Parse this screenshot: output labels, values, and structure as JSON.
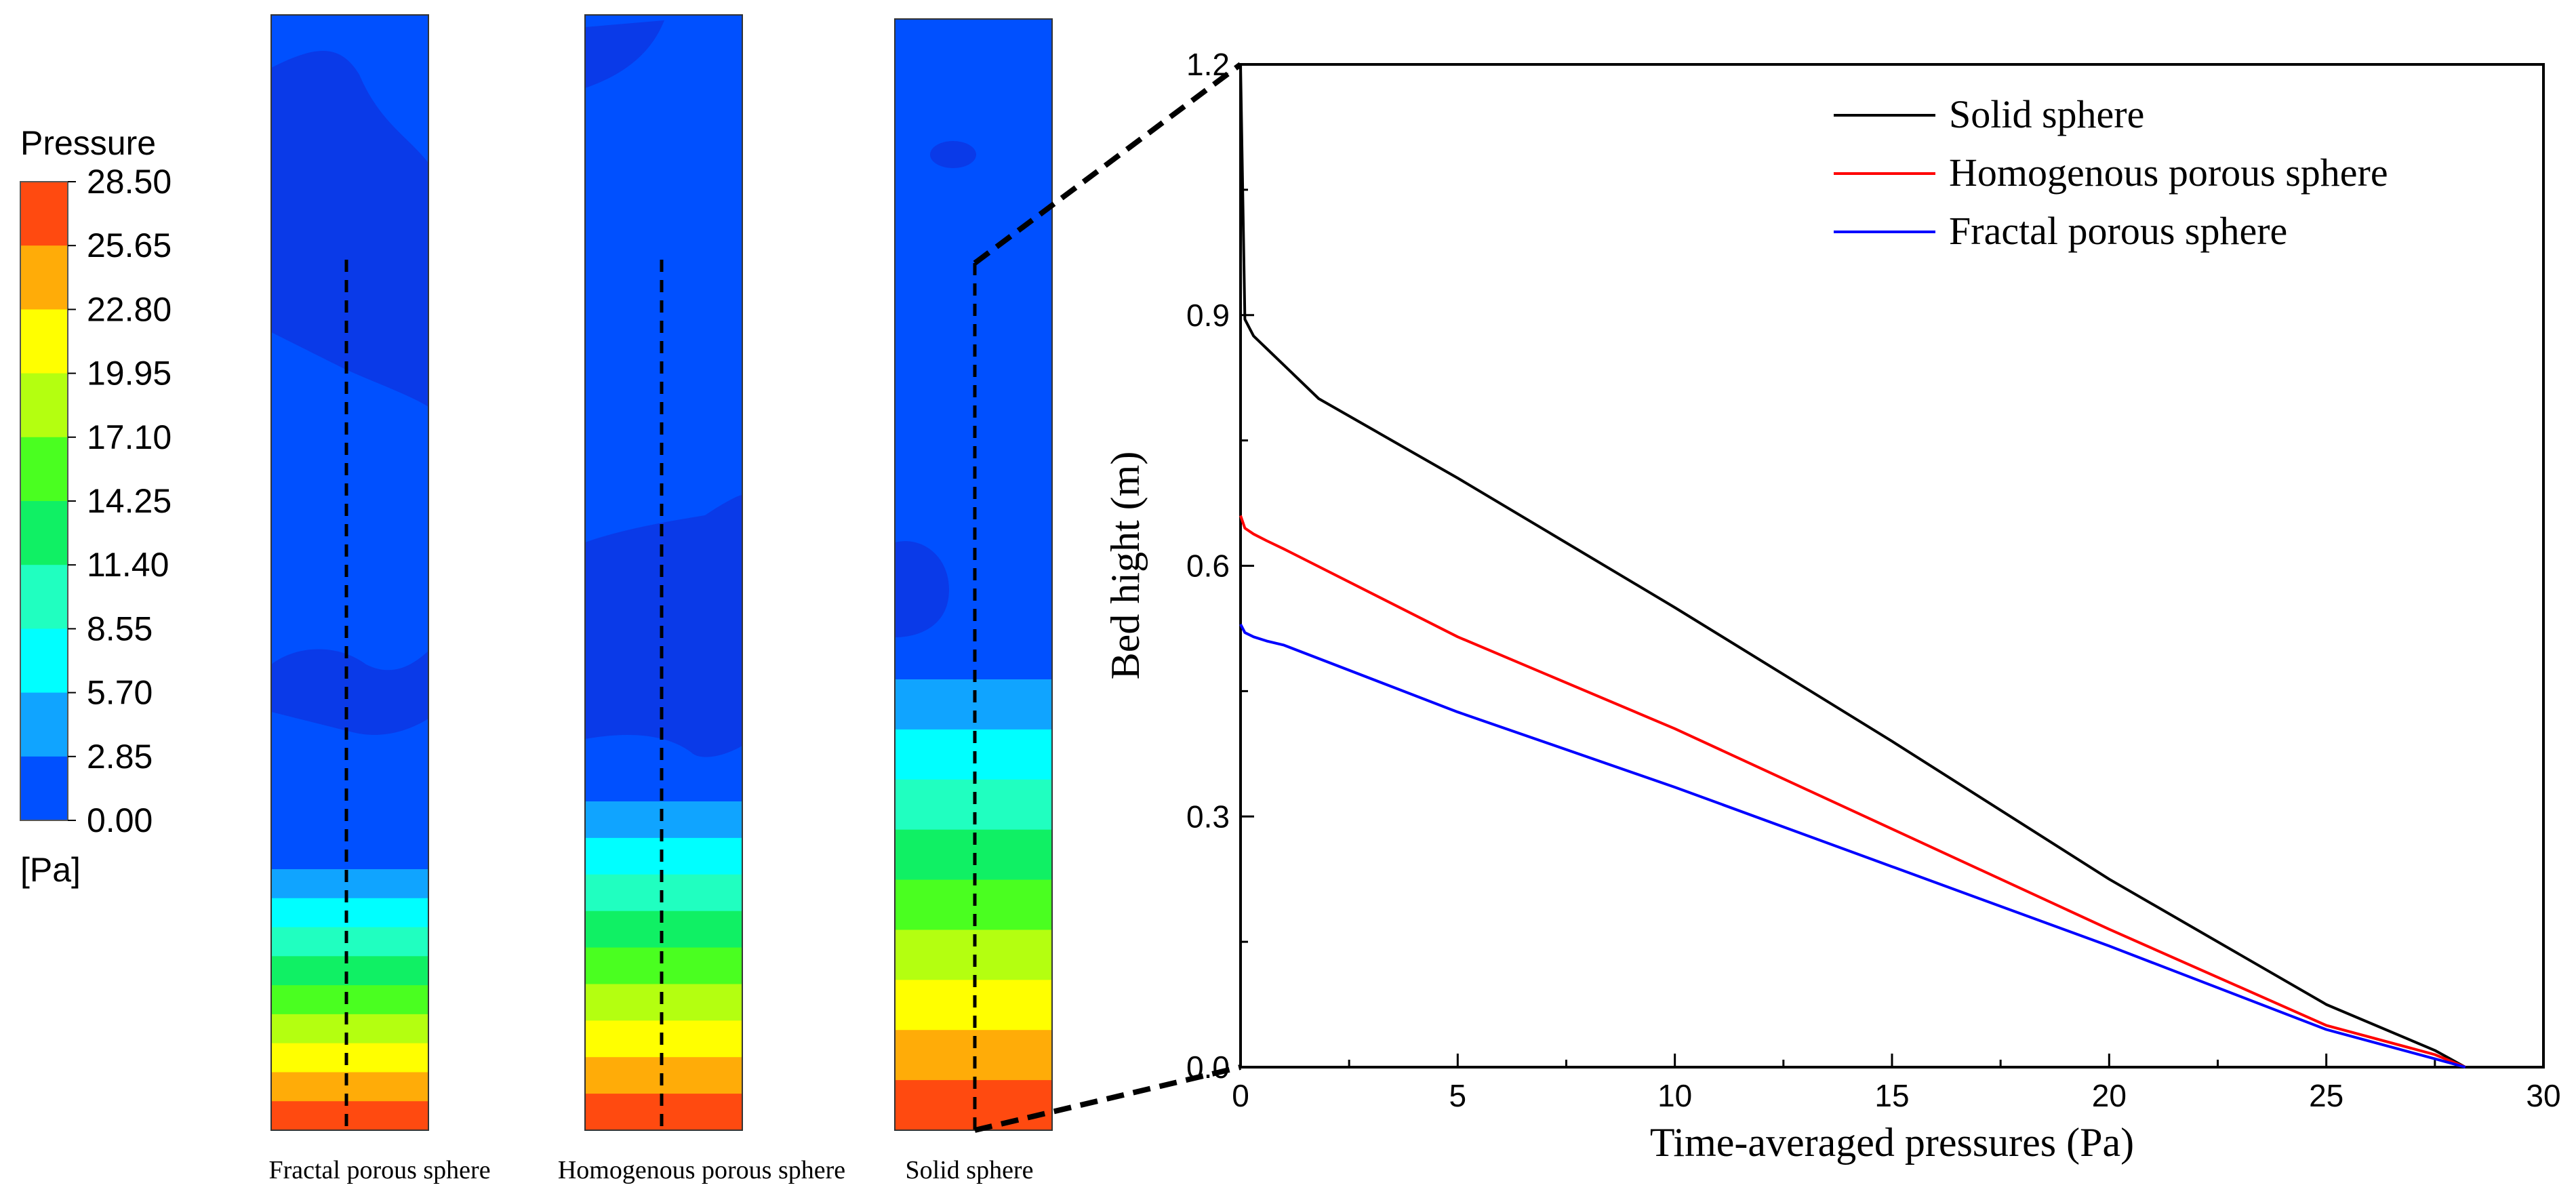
{
  "contour_panel": {
    "legend_title": "Pressure",
    "legend_unit": "[Pa]",
    "levels": [
      "28.50",
      "25.65",
      "22.80",
      "19.95",
      "17.10",
      "14.25",
      "11.40",
      "8.55",
      "5.70",
      "2.85",
      "0.00"
    ],
    "band_colors": [
      "#ff4a10",
      "#ffac08",
      "#ffff00",
      "#b4ff10",
      "#4aff20",
      "#10f064",
      "#20ffc0",
      "#00ffff",
      "#10a4ff",
      "#0050ff"
    ],
    "columns": [
      {
        "label": "Fractal porous sphere"
      },
      {
        "label": "Homogenous porous sphere"
      },
      {
        "label": "Solid sphere"
      }
    ]
  },
  "chart_data": {
    "type": "line",
    "title": "",
    "xlabel": "Time-averaged pressures (Pa)",
    "ylabel": "Bed hight (m)",
    "xlim": [
      0,
      30
    ],
    "ylim": [
      0,
      1.2
    ],
    "xticks": [
      0,
      5,
      10,
      15,
      20,
      25,
      30
    ],
    "yticks": [
      0.0,
      0.3,
      0.6,
      0.9,
      1.2
    ],
    "xtick_labels": [
      "0",
      "5",
      "10",
      "15",
      "20",
      "25",
      "30"
    ],
    "ytick_labels": [
      "0.0",
      "0.3",
      "0.6",
      "0.9",
      "1.2"
    ],
    "grid": false,
    "legend_position": "top-right",
    "series": [
      {
        "name": "Solid sphere",
        "color": "#000000",
        "x": [
          0,
          0.1,
          0.3,
          0.6,
          1.0,
          1.8,
          5,
          10,
          15,
          20,
          25,
          27.5,
          28.2
        ],
        "y": [
          1.2,
          0.895,
          0.875,
          0.86,
          0.84,
          0.8,
          0.705,
          0.55,
          0.39,
          0.225,
          0.075,
          0.02,
          0.0
        ]
      },
      {
        "name": "Homogenous porous sphere",
        "color": "#ff0000",
        "x": [
          0,
          0.1,
          0.3,
          0.6,
          1.0,
          5,
          10,
          15,
          20,
          25,
          27.5,
          28.2
        ],
        "y": [
          0.66,
          0.645,
          0.638,
          0.63,
          0.62,
          0.515,
          0.405,
          0.285,
          0.165,
          0.05,
          0.015,
          0.0
        ]
      },
      {
        "name": "Fractal porous sphere",
        "color": "#0000ff",
        "x": [
          0,
          0.1,
          0.3,
          0.6,
          1.0,
          5,
          10,
          15,
          20,
          25,
          27.5,
          28.2
        ],
        "y": [
          0.53,
          0.52,
          0.515,
          0.51,
          0.505,
          0.425,
          0.335,
          0.24,
          0.145,
          0.045,
          0.01,
          0.0
        ]
      }
    ],
    "zoom_source_label": "Solid sphere"
  }
}
